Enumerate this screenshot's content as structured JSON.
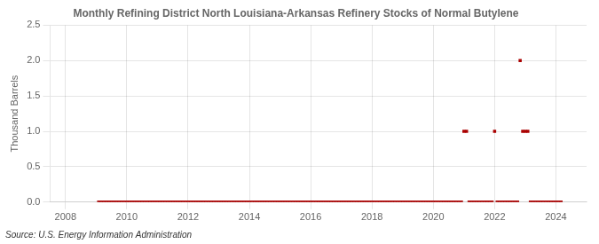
{
  "chart_data": {
    "type": "scatter",
    "title": "Monthly Refining District North Louisiana-Arkansas Refinery Stocks of Normal Butylene",
    "y_label": "Thousand Barrels",
    "annotations": [
      "Source: U.S. Energy Information Administration"
    ],
    "x": [
      2009.083,
      2009.167,
      2009.25,
      2009.333,
      2009.417,
      2009.5,
      2009.583,
      2009.667,
      2009.75,
      2009.833,
      2009.917,
      2010.0,
      2010.083,
      2010.167,
      2010.25,
      2010.333,
      2010.417,
      2010.5,
      2010.583,
      2010.667,
      2010.75,
      2010.833,
      2010.917,
      2011.0,
      2011.083,
      2011.167,
      2011.25,
      2011.333,
      2011.417,
      2011.5,
      2011.583,
      2011.667,
      2011.75,
      2011.833,
      2011.917,
      2012.0,
      2012.083,
      2012.167,
      2012.25,
      2012.333,
      2012.417,
      2012.5,
      2012.583,
      2012.667,
      2012.75,
      2012.833,
      2012.917,
      2013.0,
      2013.083,
      2013.167,
      2013.25,
      2013.333,
      2013.417,
      2013.5,
      2013.583,
      2013.667,
      2013.75,
      2013.833,
      2013.917,
      2014.0,
      2014.083,
      2014.167,
      2014.25,
      2014.333,
      2014.417,
      2014.5,
      2014.583,
      2014.667,
      2014.75,
      2014.833,
      2014.917,
      2015.0,
      2015.083,
      2015.167,
      2015.25,
      2015.333,
      2015.417,
      2015.5,
      2015.583,
      2015.667,
      2015.75,
      2015.833,
      2015.917,
      2016.0,
      2016.083,
      2016.167,
      2016.25,
      2016.333,
      2016.417,
      2016.5,
      2016.583,
      2016.667,
      2016.75,
      2016.833,
      2016.917,
      2017.0,
      2017.083,
      2017.167,
      2017.25,
      2017.333,
      2017.417,
      2017.5,
      2017.583,
      2017.667,
      2017.75,
      2017.833,
      2017.917,
      2018.0,
      2018.083,
      2018.167,
      2018.25,
      2018.333,
      2018.417,
      2018.5,
      2018.583,
      2018.667,
      2018.75,
      2018.833,
      2018.917,
      2019.0,
      2019.083,
      2019.167,
      2019.25,
      2019.333,
      2019.417,
      2019.5,
      2019.583,
      2019.667,
      2019.75,
      2019.833,
      2019.917,
      2020.0,
      2020.083,
      2020.167,
      2020.25,
      2020.333,
      2020.417,
      2020.5,
      2020.583,
      2020.667,
      2020.75,
      2020.833,
      2020.917,
      2021.0,
      2021.083,
      2021.167,
      2021.25,
      2021.333,
      2021.417,
      2021.5,
      2021.583,
      2021.667,
      2021.75,
      2021.833,
      2021.917,
      2022.0,
      2022.083,
      2022.167,
      2022.25,
      2022.333,
      2022.417,
      2022.5,
      2022.583,
      2022.667,
      2022.75,
      2022.833,
      2022.917,
      2023.0,
      2023.083,
      2023.167,
      2023.25,
      2023.333,
      2023.417,
      2023.5,
      2023.583,
      2023.667,
      2023.75,
      2023.833,
      2023.917,
      2024.0,
      2024.083,
      2024.167
    ],
    "values": [
      0,
      0,
      0,
      0,
      0,
      0,
      0,
      0,
      0,
      0,
      0,
      0,
      0,
      0,
      0,
      0,
      0,
      0,
      0,
      0,
      0,
      0,
      0,
      0,
      0,
      0,
      0,
      0,
      0,
      0,
      0,
      0,
      0,
      0,
      0,
      0,
      0,
      0,
      0,
      0,
      0,
      0,
      0,
      0,
      0,
      0,
      0,
      0,
      0,
      0,
      0,
      0,
      0,
      0,
      0,
      0,
      0,
      0,
      0,
      0,
      0,
      0,
      0,
      0,
      0,
      0,
      0,
      0,
      0,
      0,
      0,
      0,
      0,
      0,
      0,
      0,
      0,
      0,
      0,
      0,
      0,
      0,
      0,
      0,
      0,
      0,
      0,
      0,
      0,
      0,
      0,
      0,
      0,
      0,
      0,
      0,
      0,
      0,
      0,
      0,
      0,
      0,
      0,
      0,
      0,
      0,
      0,
      0,
      0,
      0,
      0,
      0,
      0,
      0,
      0,
      0,
      0,
      0,
      0,
      0,
      0,
      0,
      0,
      0,
      0,
      0,
      0,
      0,
      0,
      0,
      0,
      0,
      0,
      0,
      0,
      0,
      0,
      0,
      0,
      0,
      0,
      0,
      0,
      1,
      1,
      0,
      0,
      0,
      0,
      0,
      0,
      0,
      0,
      0,
      0,
      1,
      0,
      0,
      0,
      0,
      0,
      0,
      0,
      0,
      0,
      2,
      1,
      1,
      1,
      0,
      0,
      0,
      0,
      0,
      0,
      0,
      0,
      0,
      0,
      0,
      0,
      0
    ],
    "color": "#aa0000",
    "marker": "square",
    "xlim": [
      2007.5,
      2025.0
    ],
    "xticks": [
      2008,
      2010,
      2012,
      2014,
      2016,
      2018,
      2020,
      2022,
      2024
    ],
    "ylim": [
      0.0,
      2.5
    ],
    "yticks": [
      {
        "value": 0.0,
        "label": "0.0"
      },
      0.5,
      {
        "value": 1.0,
        "label": "1.0"
      },
      1.5,
      {
        "value": 2.0,
        "label": "2.0"
      },
      2.5
    ],
    "grid": true
  }
}
